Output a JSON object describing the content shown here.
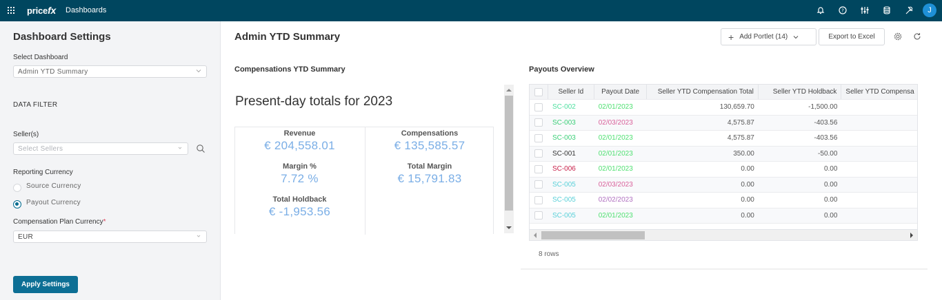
{
  "topbar": {
    "logo_main": "price",
    "logo_fx": "fx",
    "nav_title": "Dashboards",
    "icons": [
      "bell-icon",
      "help-icon",
      "sliders-icon",
      "database-icon",
      "wrench-icon"
    ],
    "avatar_initial": "J"
  },
  "sidebar": {
    "title": "Dashboard Settings",
    "select_dashboard_label": "Select Dashboard",
    "select_dashboard_value": "Admin YTD Summary",
    "data_filter_heading": "DATA FILTER",
    "sellers_label": "Seller(s)",
    "sellers_placeholder": "Select Sellers",
    "reporting_currency_label": "Reporting Currency",
    "reporting_options": [
      {
        "label": "Source Currency",
        "checked": false
      },
      {
        "label": "Payout Currency",
        "checked": true
      }
    ],
    "comp_plan_currency_label": "Compensation Plan Currency",
    "required_mark": "*",
    "comp_plan_currency_value": "EUR",
    "apply_label": "Apply Settings"
  },
  "main": {
    "page_title": "Admin YTD Summary",
    "add_portlet_label": "Add Portlet (14)",
    "export_label": "Export to Excel",
    "summary_portlet": {
      "title": "Compensations YTD Summary",
      "heading": "Present-day totals for 2023",
      "kpis": {
        "revenue": {
          "label": "Revenue",
          "value": "€ 204,558.01"
        },
        "margin_pct": {
          "label": "Margin %",
          "value": "7.72 %"
        },
        "total_holdback": {
          "label": "Total Holdback",
          "value": "€ -1,953.56"
        },
        "compensations": {
          "label": "Compensations",
          "value": "€ 135,585.57"
        },
        "total_margin": {
          "label": "Total Margin",
          "value": "€ 15,791.83"
        }
      }
    },
    "payouts_portlet": {
      "title": "Payouts Overview",
      "columns": [
        "Seller Id",
        "Payout Date",
        "Seller YTD Compensation Total",
        "Seller YTD Holdback",
        "Seller YTD Compensa"
      ],
      "rows": [
        {
          "seller": "SC-002",
          "seller_color": "#4fe0a0",
          "date": "02/01/2023",
          "date_color": "#4ee070",
          "comp": "130,659.70",
          "hold": "-1,500.00"
        },
        {
          "seller": "SC-003",
          "seller_color": "#3ccf78",
          "date": "02/03/2023",
          "date_color": "#d9609a",
          "comp": "4,575.87",
          "hold": "-403.56"
        },
        {
          "seller": "SC-003",
          "seller_color": "#3ccf78",
          "date": "02/01/2023",
          "date_color": "#4ee070",
          "comp": "4,575.87",
          "hold": "-403.56"
        },
        {
          "seller": "SC-001",
          "seller_color": "#333333",
          "date": "02/01/2023",
          "date_color": "#4ee070",
          "comp": "350.00",
          "hold": "-50.00"
        },
        {
          "seller": "SC-006",
          "seller_color": "#c8204a",
          "date": "02/01/2023",
          "date_color": "#4ee070",
          "comp": "0.00",
          "hold": "0.00"
        },
        {
          "seller": "SC-005",
          "seller_color": "#5ad0d8",
          "date": "02/03/2023",
          "date_color": "#d9609a",
          "comp": "0.00",
          "hold": "0.00"
        },
        {
          "seller": "SC-005",
          "seller_color": "#5ad0d8",
          "date": "02/02/2023",
          "date_color": "#b070c0",
          "comp": "0.00",
          "hold": "0.00"
        },
        {
          "seller": "SC-005",
          "seller_color": "#5ad0d8",
          "date": "02/01/2023",
          "date_color": "#4ee070",
          "comp": "0.00",
          "hold": "0.00"
        }
      ],
      "row_count": "8 rows"
    }
  }
}
